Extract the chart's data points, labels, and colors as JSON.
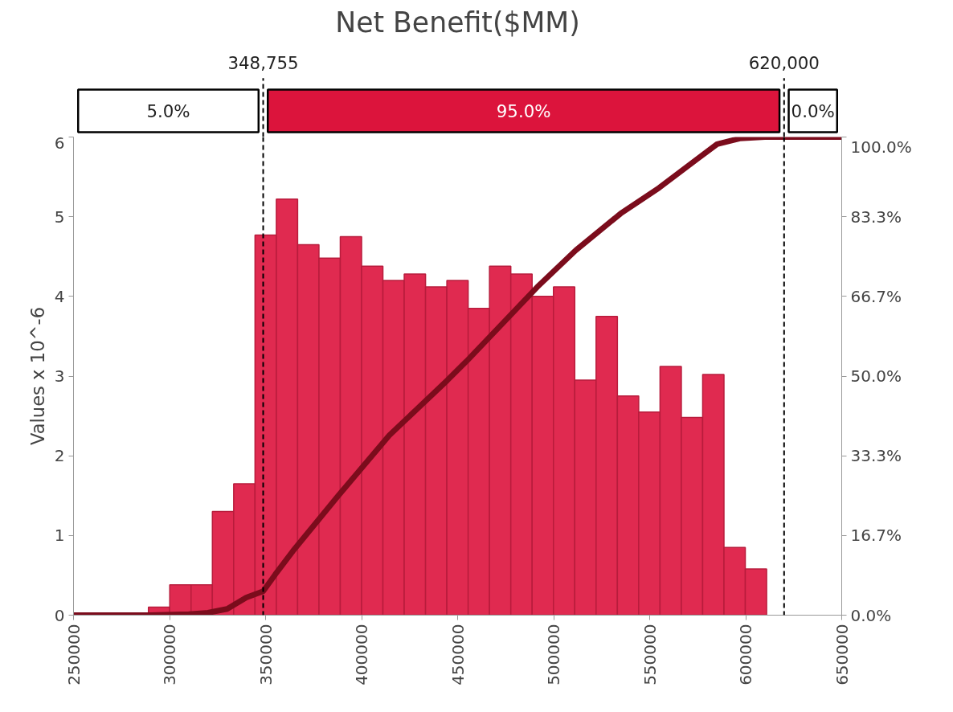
{
  "chart_data": {
    "type": "histogram",
    "title": "Net Benefit($MM)",
    "ylabel": "Values x 10^-6",
    "bins": [
      289000,
      300100,
      311200,
      322300,
      333400,
      344500,
      355600,
      366700,
      377800,
      388900,
      400000,
      411100,
      422200,
      433300,
      444400,
      455500,
      466600,
      477700,
      488800,
      499900,
      511000,
      522100,
      533200,
      544300,
      555400,
      566500,
      577600,
      588700,
      599800,
      610900
    ],
    "series": [
      {
        "color": "#e02a50",
        "values": [
          0.1,
          0.38,
          0.38,
          1.3,
          1.65,
          4.77,
          5.22,
          4.65,
          4.48,
          4.75,
          4.38,
          4.2,
          4.28,
          4.12,
          4.2,
          3.85,
          4.38,
          4.28,
          4.0,
          4.12,
          2.95,
          3.75,
          2.75,
          2.55,
          3.12,
          2.48,
          3.02,
          0.85,
          0.58
        ]
      },
      {
        "type": "line",
        "axis": "y2",
        "color": "#7b0c1c",
        "x": [
          250000,
          290000,
          310000,
          320000,
          330000,
          340000,
          348755,
          355000,
          364200,
          387700,
          414400,
          444600,
          454600,
          491400,
          511500,
          534900,
          555000,
          575100,
          585100,
          596900,
          610000,
          620000,
          650000
        ],
        "values": [
          0,
          0,
          0.2,
          0.5,
          1.3,
          3.7,
          5.0,
          8.5,
          13.4,
          24.9,
          37.6,
          49.1,
          53.1,
          68.6,
          76.3,
          84.0,
          89.4,
          95.5,
          98.5,
          99.7,
          100,
          100,
          100
        ]
      }
    ],
    "xlim": [
      250000,
      650000
    ],
    "xticks": [
      250000,
      300000,
      350000,
      400000,
      450000,
      500000,
      550000,
      600000,
      650000
    ],
    "ylim": [
      0,
      6
    ],
    "yticks": [
      0,
      1,
      2,
      3,
      4,
      5,
      6
    ],
    "y2lim": [
      0,
      100
    ],
    "y2ticks": [
      {
        "value": 0,
        "label": "0.0%"
      },
      {
        "value": 16.7,
        "label": "16.7%"
      },
      {
        "value": 33.3,
        "label": "33.3%"
      },
      {
        "value": 50,
        "label": "50.0%"
      },
      {
        "value": 66.7,
        "label": "66.7%"
      },
      {
        "value": 83.3,
        "label": "83.3%"
      },
      {
        "value": 100,
        "label": "100.0%"
      }
    ],
    "ref_lines": [
      {
        "axis": "x",
        "value": 348755,
        "label": "348,755",
        "line_style": "dashed"
      },
      {
        "axis": "x",
        "value": 620000,
        "label": "620,000",
        "line_style": "dashed"
      }
    ],
    "annotations": [
      "5.0%",
      "95.0%",
      "0.0%"
    ],
    "grid": false
  }
}
